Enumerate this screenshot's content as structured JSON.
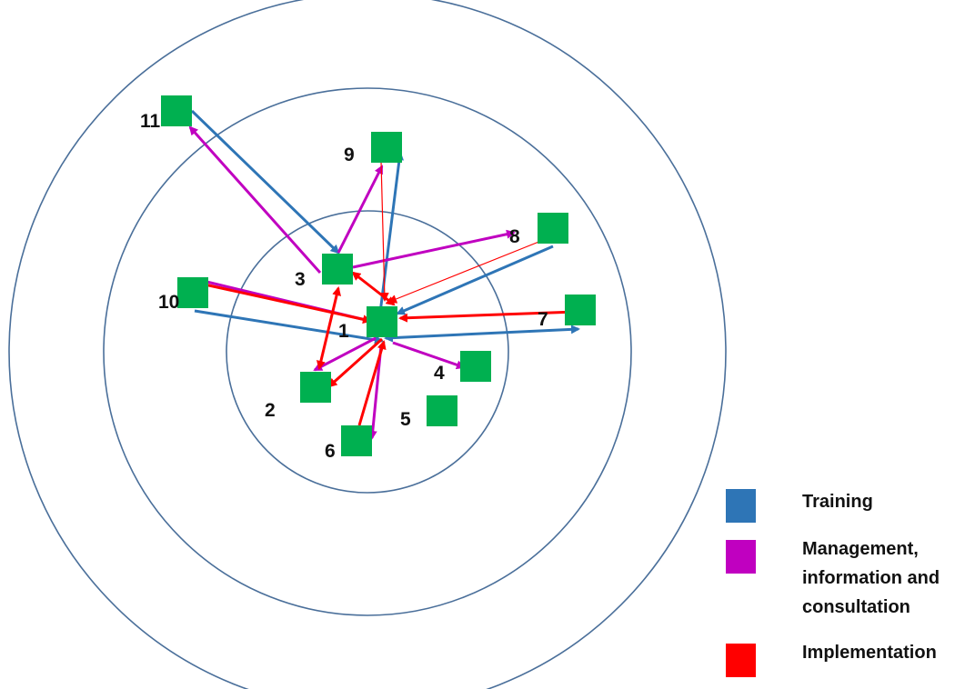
{
  "colors": {
    "ring": "#4a6f9a",
    "node": "#00b050",
    "training": "#2e75b6",
    "management": "#c000c0",
    "implementation": "#ff0000"
  },
  "nodes": [
    {
      "id": "1",
      "label": "1"
    },
    {
      "id": "2",
      "label": "2"
    },
    {
      "id": "3",
      "label": "3"
    },
    {
      "id": "4",
      "label": "4"
    },
    {
      "id": "5",
      "label": "5"
    },
    {
      "id": "6",
      "label": "6"
    },
    {
      "id": "7",
      "label": "7"
    },
    {
      "id": "8",
      "label": "8"
    },
    {
      "id": "9",
      "label": "9"
    },
    {
      "id": "10",
      "label": "10"
    },
    {
      "id": "11",
      "label": "11"
    }
  ],
  "legend": {
    "training": "Training",
    "management_line1": "Management,",
    "management_line2": "information and",
    "management_line3": "consultation",
    "implementation": "Implementation"
  },
  "edges": [
    {
      "from": "11",
      "to": "3",
      "type": "training"
    },
    {
      "from": "1",
      "to": "9",
      "type": "training"
    },
    {
      "from": "8",
      "to": "1",
      "type": "training"
    },
    {
      "from": "10",
      "to": "1",
      "type": "training"
    },
    {
      "from": "1",
      "to": "7",
      "type": "training",
      "bidirectional": true
    },
    {
      "from": "3",
      "to": "11",
      "type": "management"
    },
    {
      "from": "3",
      "to": "9",
      "type": "management"
    },
    {
      "from": "3",
      "to": "8",
      "type": "management"
    },
    {
      "from": "1",
      "to": "10",
      "type": "management"
    },
    {
      "from": "1",
      "to": "4",
      "type": "management"
    },
    {
      "from": "1",
      "to": "6",
      "type": "management"
    },
    {
      "from": "1",
      "to": "2",
      "type": "management"
    },
    {
      "from": "3",
      "to": "2",
      "type": "implementation",
      "bidirectional": true
    },
    {
      "from": "3",
      "to": "1",
      "type": "implementation",
      "bidirectional": true
    },
    {
      "from": "9",
      "to": "1",
      "type": "implementation",
      "thin": true
    },
    {
      "from": "8",
      "to": "1",
      "type": "implementation",
      "thin": true
    },
    {
      "from": "7",
      "to": "1",
      "type": "implementation"
    },
    {
      "from": "10",
      "to": "1",
      "type": "implementation"
    },
    {
      "from": "1",
      "to": "2",
      "type": "implementation"
    },
    {
      "from": "6",
      "to": "1",
      "type": "implementation"
    }
  ]
}
